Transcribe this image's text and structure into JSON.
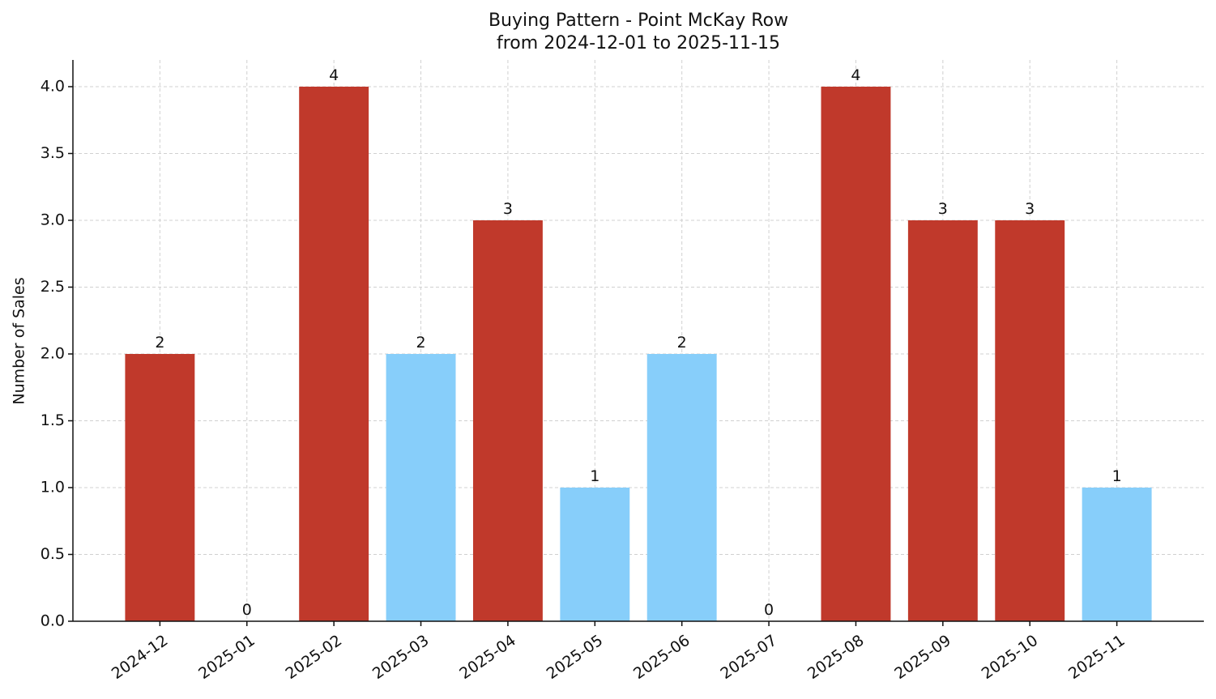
{
  "chart_data": {
    "type": "bar",
    "title": "Buying Pattern - Point McKay Row",
    "subtitle": "from 2024-12-01 to 2025-11-15",
    "y_label": "Number of Sales",
    "categories": [
      "2024-12",
      "2025-01",
      "2025-02",
      "2025-03",
      "2025-04",
      "2025-05",
      "2025-06",
      "2025-07",
      "2025-08",
      "2025-09",
      "2025-10",
      "2025-11"
    ],
    "values": [
      2,
      0,
      4,
      2,
      3,
      1,
      2,
      0,
      4,
      3,
      3,
      1
    ],
    "colors": [
      "#c0392b",
      "#c0392b",
      "#c0392b",
      "#87cefa",
      "#c0392b",
      "#87cefa",
      "#87cefa",
      "#c0392b",
      "#c0392b",
      "#c0392b",
      "#c0392b",
      "#87cefa"
    ],
    "ylim": [
      0,
      4.2
    ],
    "yticks": [
      {
        "value": 0,
        "label": "0.0"
      },
      {
        "value": 0.5,
        "label": "0.5"
      },
      {
        "value": 1,
        "label": "1.0"
      },
      {
        "value": 1.5,
        "label": "1.5"
      },
      {
        "value": 2,
        "label": "2.0"
      },
      {
        "value": 2.5,
        "label": "2.5"
      },
      {
        "value": 3,
        "label": "3.0"
      },
      {
        "value": 3.5,
        "label": "3.5"
      },
      {
        "value": 4,
        "label": "4.0"
      }
    ],
    "grid": true
  }
}
